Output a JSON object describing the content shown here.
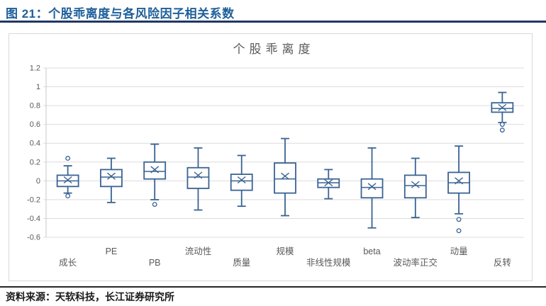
{
  "header": {
    "title": "图 21：个股乖离度与各风险因子相关系数"
  },
  "footer": {
    "source": "资料来源：天软科技，长江证券研究所"
  },
  "colors": {
    "caption_blue": "#1E5F99",
    "caption_rule_navy": "#1F3864",
    "box_stroke_blue": "#3A6394",
    "gridline_gray": "#DCDCDC",
    "axis_line_gray": "#C9C9C9",
    "axis_text_gray": "#595959",
    "chart_title_gray": "#595959",
    "card_border_gray": "#D9D9D9",
    "footer_rule_dark": "#262626",
    "source_text_dark": "#1A1A1A"
  },
  "chart_data": {
    "type": "boxplot",
    "title": "个股乖离度",
    "ylim": [
      -0.6,
      1.2
    ],
    "y_tick_values": [
      1.2,
      1,
      0.8,
      0.6,
      0.4,
      0.2,
      0,
      -0.2,
      -0.4,
      -0.6
    ],
    "y_tick_labels": [
      "1.2",
      "1",
      "0.8",
      "0.6",
      "0.4",
      "0.2",
      "0",
      "-0.2",
      "-0.4",
      "-0.6"
    ],
    "grid": true,
    "legend": false,
    "xlabel": "",
    "ylabel": "",
    "label_layout": "staggered: odd-position labels upper row, even-position labels lower row",
    "categories": [
      "成长",
      "PE",
      "PB",
      "流动性",
      "质量",
      "规模",
      "非线性规模",
      "beta",
      "波动率正交",
      "动量",
      "反转"
    ],
    "boxes": [
      {
        "category": "成长",
        "whisker_low": -0.13,
        "q1": -0.06,
        "median": 0.0,
        "mean": 0.01,
        "q3": 0.06,
        "whisker_high": 0.16,
        "outliers": [
          0.24,
          -0.16
        ]
      },
      {
        "category": "PE",
        "whisker_low": -0.23,
        "q1": -0.06,
        "median": 0.04,
        "mean": 0.05,
        "q3": 0.12,
        "whisker_high": 0.24,
        "outliers": []
      },
      {
        "category": "PB",
        "whisker_low": -0.2,
        "q1": 0.02,
        "median": 0.1,
        "mean": 0.12,
        "q3": 0.2,
        "whisker_high": 0.39,
        "outliers": [
          -0.25
        ]
      },
      {
        "category": "流动性",
        "whisker_low": -0.31,
        "q1": -0.08,
        "median": 0.04,
        "mean": 0.06,
        "q3": 0.14,
        "whisker_high": 0.35,
        "outliers": []
      },
      {
        "category": "质量",
        "whisker_low": -0.27,
        "q1": -0.1,
        "median": 0.0,
        "mean": 0.01,
        "q3": 0.07,
        "whisker_high": 0.27,
        "outliers": []
      },
      {
        "category": "规模",
        "whisker_low": -0.37,
        "q1": -0.13,
        "median": 0.02,
        "mean": 0.05,
        "q3": 0.19,
        "whisker_high": 0.45,
        "outliers": []
      },
      {
        "category": "非线性规模",
        "whisker_low": -0.19,
        "q1": -0.07,
        "median": -0.02,
        "mean": -0.02,
        "q3": 0.02,
        "whisker_high": 0.12,
        "outliers": []
      },
      {
        "category": "beta",
        "whisker_low": -0.5,
        "q1": -0.18,
        "median": -0.07,
        "mean": -0.06,
        "q3": 0.02,
        "whisker_high": 0.35,
        "outliers": []
      },
      {
        "category": "波动率正交",
        "whisker_low": -0.39,
        "q1": -0.18,
        "median": -0.05,
        "mean": -0.04,
        "q3": 0.06,
        "whisker_high": 0.24,
        "outliers": []
      },
      {
        "category": "动量",
        "whisker_low": -0.35,
        "q1": -0.13,
        "median": -0.02,
        "mean": 0.0,
        "q3": 0.09,
        "whisker_high": 0.37,
        "outliers": [
          -0.41,
          -0.53
        ]
      },
      {
        "category": "反转",
        "whisker_low": 0.62,
        "q1": 0.73,
        "median": 0.77,
        "mean": 0.78,
        "q3": 0.83,
        "whisker_high": 0.94,
        "outliers": [
          0.6,
          0.54
        ]
      }
    ]
  }
}
